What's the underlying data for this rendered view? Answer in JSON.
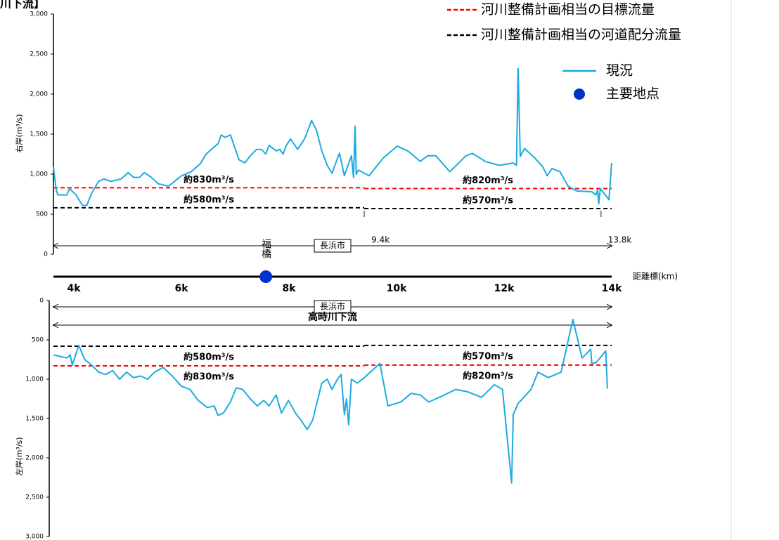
{
  "title": "川下流】",
  "x_label": "距離標(km)",
  "chart_data": [
    {
      "type": "line",
      "y_label": "右岸(m³/s)",
      "xlim": [
        3.62,
        14
      ],
      "ylim": [
        0,
        3000
      ],
      "xticks": [
        {
          "value": 4,
          "label": "4k"
        },
        {
          "value": 6,
          "label": "6k"
        },
        {
          "value": 8,
          "label": "8k"
        },
        {
          "value": 10,
          "label": "10k"
        },
        {
          "value": 12,
          "label": "12k"
        },
        {
          "value": 14,
          "label": "14k"
        }
      ],
      "yticks": [
        0,
        500,
        {
          "value": 1000,
          "label": "1,000"
        },
        {
          "value": 1500,
          "label": "1,500"
        },
        {
          "value": 2000,
          "label": "2,000"
        },
        {
          "value": 2500,
          "label": "2,500"
        },
        {
          "value": 3000,
          "label": "3,000"
        }
      ],
      "series": [
        {
          "name": "現況",
          "color": "#1aabe0",
          "x": [
            3.62,
            3.67,
            3.7,
            3.87,
            3.92,
            4.04,
            4.16,
            4.24,
            4.33,
            4.46,
            4.56,
            4.69,
            4.88,
            5.01,
            5.11,
            5.22,
            5.31,
            5.44,
            5.57,
            5.76,
            6.0,
            6.18,
            6.35,
            6.46,
            6.59,
            6.68,
            6.74,
            6.81,
            6.91,
            7.07,
            7.18,
            7.28,
            7.4,
            7.49,
            7.57,
            7.63,
            7.76,
            7.83,
            7.89,
            7.95,
            8.03,
            8.16,
            8.29,
            8.42,
            8.51,
            8.61,
            8.71,
            8.8,
            8.88,
            8.94,
            9.03,
            9.16,
            9.2,
            9.23,
            9.25,
            9.29,
            9.49,
            9.75,
            10.01,
            10.21,
            10.44,
            10.58,
            10.73,
            10.99,
            11.29,
            11.41,
            11.65,
            11.91,
            12.17,
            12.23,
            12.26,
            12.3,
            12.38,
            12.56,
            12.72,
            12.8,
            12.89,
            13.04,
            13.19,
            13.35,
            13.63,
            13.71,
            13.74,
            13.76,
            13.79,
            13.95,
            14.0
          ],
          "values": [
            1090,
            810,
            740,
            740,
            820,
            740,
            610,
            610,
            760,
            910,
            940,
            910,
            940,
            1020,
            960,
            960,
            1020,
            960,
            880,
            850,
            980,
            1030,
            1130,
            1250,
            1330,
            1380,
            1490,
            1460,
            1490,
            1180,
            1140,
            1230,
            1310,
            1310,
            1250,
            1360,
            1290,
            1310,
            1250,
            1360,
            1440,
            1310,
            1440,
            1670,
            1550,
            1290,
            1110,
            1010,
            1160,
            1260,
            980,
            1230,
            960,
            1600,
            1000,
            1050,
            980,
            1200,
            1350,
            1290,
            1160,
            1230,
            1230,
            1030,
            1230,
            1260,
            1160,
            1110,
            1140,
            1110,
            2320,
            1220,
            1320,
            1210,
            1090,
            980,
            1070,
            1030,
            850,
            790,
            780,
            740,
            810,
            630,
            820,
            680,
            1140
          ]
        }
      ],
      "reference_lines": [
        {
          "name": "河川整備計画相当の目標流量",
          "color": "#ff0000",
          "segments": [
            {
              "x": [
                3.62,
                9.4
              ],
              "value": 830,
              "label": "約830m³/s"
            },
            {
              "x": [
                9.4,
                14
              ],
              "value": 820,
              "label": "約820m³/s"
            }
          ]
        },
        {
          "name": "河川整備計画相当の河道配分流量",
          "color": "#000000",
          "segments": [
            {
              "x": [
                3.62,
                9.4
              ],
              "value": 580,
              "label": "約580m³/s"
            },
            {
              "x": [
                9.4,
                14
              ],
              "value": 570,
              "label": "約570m³/s"
            }
          ]
        }
      ],
      "ranges": [
        {
          "label": "長浜市",
          "x": [
            3.62,
            14
          ],
          "style": "box"
        }
      ],
      "markers": [
        {
          "label": "9.4k",
          "x": 9.4
        },
        {
          "label": "13.8k",
          "x": 13.8
        }
      ],
      "key_points": {
        "name": "主要地点",
        "color": "#0033cc",
        "points": [
          {
            "label": "福橋",
            "x": 7.57
          }
        ]
      }
    },
    {
      "type": "line",
      "y_label": "左岸(m³/s)",
      "y_inverted": true,
      "xlim": [
        3.62,
        14
      ],
      "ylim": [
        0,
        3000
      ],
      "yticks": [
        0,
        500,
        {
          "value": 1000,
          "label": "1,000"
        },
        {
          "value": 1500,
          "label": "1,500"
        },
        {
          "value": 2000,
          "label": "2,000"
        },
        {
          "value": 2500,
          "label": "2,500"
        },
        {
          "value": 3000,
          "label": "3,000"
        }
      ],
      "series": [
        {
          "color": "#1aabe0",
          "x": [
            3.62,
            3.74,
            3.87,
            3.93,
            3.97,
            4.09,
            4.2,
            4.33,
            4.46,
            4.59,
            4.72,
            4.85,
            4.98,
            5.11,
            5.24,
            5.37,
            5.5,
            5.66,
            5.83,
            6.0,
            6.16,
            6.31,
            6.48,
            6.61,
            6.68,
            6.78,
            6.91,
            7.02,
            7.14,
            7.28,
            7.41,
            7.53,
            7.63,
            7.76,
            7.86,
            7.99,
            8.12,
            8.22,
            8.34,
            8.44,
            8.61,
            8.71,
            8.8,
            8.9,
            8.97,
            9.03,
            9.07,
            9.11,
            9.16,
            9.27,
            9.4,
            9.69,
            9.84,
            10.08,
            10.27,
            10.44,
            10.6,
            10.86,
            11.1,
            11.32,
            11.58,
            11.82,
            11.97,
            12.14,
            12.17,
            12.26,
            12.5,
            12.63,
            12.82,
            13.06,
            13.28,
            13.45,
            13.61,
            13.63,
            13.71,
            13.89,
            13.92
          ],
          "values": [
            690,
            710,
            730,
            690,
            820,
            570,
            750,
            820,
            910,
            940,
            890,
            1000,
            910,
            980,
            960,
            1000,
            910,
            850,
            960,
            1090,
            1130,
            1270,
            1360,
            1340,
            1460,
            1430,
            1290,
            1110,
            1130,
            1250,
            1340,
            1270,
            1340,
            1200,
            1430,
            1270,
            1430,
            1520,
            1640,
            1520,
            1050,
            1000,
            1130,
            1000,
            940,
            1450,
            1250,
            1580,
            1000,
            1050,
            980,
            800,
            1340,
            1290,
            1180,
            1200,
            1290,
            1210,
            1130,
            1160,
            1230,
            1070,
            1130,
            2320,
            1450,
            1310,
            1130,
            910,
            980,
            910,
            240,
            730,
            620,
            800,
            790,
            640,
            1120
          ]
        }
      ],
      "reference_lines": [
        {
          "color": "#ff0000",
          "segments": [
            {
              "x": [
                3.62,
                9.4
              ],
              "value": 830,
              "label": "約830m³/s"
            },
            {
              "x": [
                9.4,
                14
              ],
              "value": 820,
              "label": "約820m³/s"
            }
          ]
        },
        {
          "color": "#000000",
          "segments": [
            {
              "x": [
                3.62,
                9.4
              ],
              "value": 580,
              "label": "約580m³/s"
            },
            {
              "x": [
                9.4,
                14
              ],
              "value": 570,
              "label": "約570m³/s"
            }
          ]
        }
      ],
      "ranges": [
        {
          "label": "長浜市",
          "x": [
            3.62,
            14
          ],
          "style": "box"
        },
        {
          "label": "高時川下流",
          "x": [
            3.62,
            14
          ],
          "style": "plain"
        }
      ]
    }
  ]
}
